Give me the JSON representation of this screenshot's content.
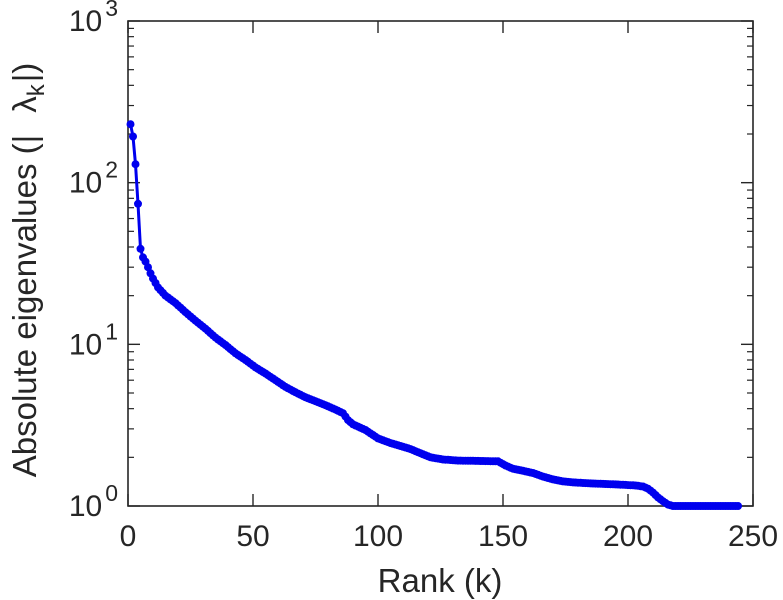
{
  "figure": {
    "background": "#ffffff",
    "axis_color": "#262626",
    "text_color": "#262626"
  },
  "chart_data": {
    "type": "line",
    "title": "",
    "xlabel": "Rank (k)",
    "ylabel": "Absolute eigenvalues (|λk|)",
    "ylabel_parts": {
      "prefix": "Absolute eigenvalues (|",
      "lambda": "λ",
      "sub": "k",
      "suffix": "|)"
    },
    "x_scale": "linear",
    "y_scale": "log10",
    "xlim": [
      0,
      250
    ],
    "ylim_exponents": [
      0,
      3
    ],
    "xticks": [
      0,
      50,
      100,
      150,
      200,
      250
    ],
    "ytick_base": "10",
    "ytick_exponents": [
      0,
      1,
      2,
      3
    ],
    "y_minor_multipliers": [
      2,
      3,
      4,
      5,
      6,
      7,
      8,
      9
    ],
    "grid": "off",
    "legend": "none",
    "line_color": "#0000EE",
    "marker": "circle",
    "n_points": 244,
    "series": [
      {
        "name": "absolute-eigenvalues",
        "anchor_points": [
          [
            1,
            230
          ],
          [
            2,
            193
          ],
          [
            3,
            130
          ],
          [
            4,
            74
          ],
          [
            5,
            39
          ],
          [
            6,
            34.5
          ],
          [
            7,
            32.5
          ],
          [
            8,
            30
          ],
          [
            9,
            27.5
          ],
          [
            10,
            25.5
          ],
          [
            12,
            22.5
          ],
          [
            15,
            20
          ],
          [
            19,
            18
          ],
          [
            23,
            15.8
          ],
          [
            27,
            14
          ],
          [
            31,
            12.5
          ],
          [
            35,
            11
          ],
          [
            39,
            9.9
          ],
          [
            43,
            8.8
          ],
          [
            47,
            8
          ],
          [
            51,
            7.2
          ],
          [
            55,
            6.6
          ],
          [
            59,
            6
          ],
          [
            63,
            5.45
          ],
          [
            67,
            5.05
          ],
          [
            71,
            4.7
          ],
          [
            75,
            4.45
          ],
          [
            79,
            4.2
          ],
          [
            83,
            3.95
          ],
          [
            86,
            3.75
          ],
          [
            88,
            3.4
          ],
          [
            90,
            3.2
          ],
          [
            95,
            2.95
          ],
          [
            100,
            2.62
          ],
          [
            105,
            2.45
          ],
          [
            109,
            2.35
          ],
          [
            113,
            2.25
          ],
          [
            117,
            2.12
          ],
          [
            121,
            2.0
          ],
          [
            126,
            1.94
          ],
          [
            132,
            1.91
          ],
          [
            148,
            1.89
          ],
          [
            151,
            1.78
          ],
          [
            154,
            1.7
          ],
          [
            158,
            1.65
          ],
          [
            162,
            1.6
          ],
          [
            166,
            1.52
          ],
          [
            170,
            1.46
          ],
          [
            174,
            1.42
          ],
          [
            178,
            1.4
          ],
          [
            185,
            1.38
          ],
          [
            195,
            1.36
          ],
          [
            203,
            1.34
          ],
          [
            206,
            1.32
          ],
          [
            208,
            1.28
          ],
          [
            210,
            1.21
          ],
          [
            212,
            1.13
          ],
          [
            214,
            1.07
          ],
          [
            216,
            1.02
          ],
          [
            218,
            1.0
          ],
          [
            244,
            1.0
          ]
        ]
      }
    ]
  }
}
